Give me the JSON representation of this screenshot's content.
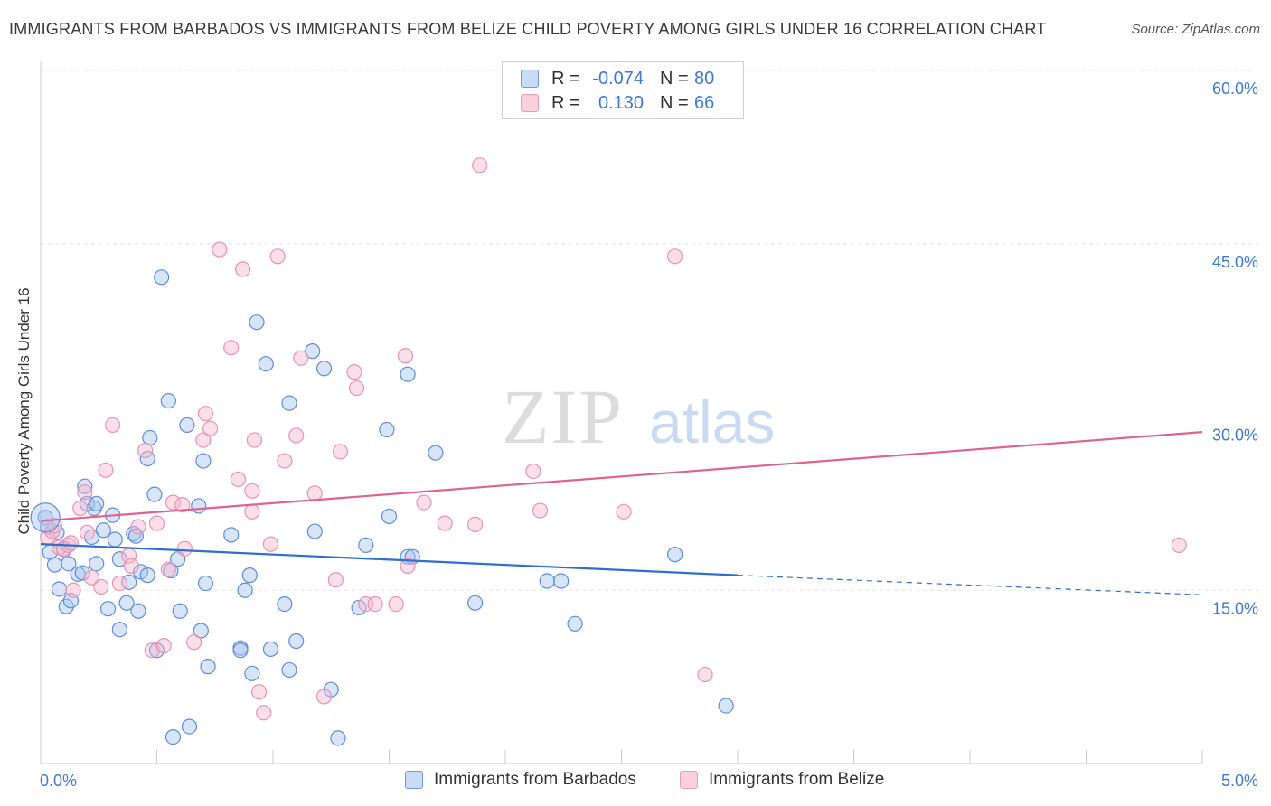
{
  "title": "IMMIGRANTS FROM BARBADOS VS IMMIGRANTS FROM BELIZE CHILD POVERTY AMONG GIRLS UNDER 16 CORRELATION CHART",
  "source": "Source: ZipAtlas.com",
  "watermark": {
    "zip": "ZIP",
    "atlas": "atlas"
  },
  "legend": {
    "rows": [
      {
        "r_label": "R =",
        "r_value": "-0.074",
        "n_label": "N =",
        "n_value": "80",
        "color": "#a9c4ef"
      },
      {
        "r_label": "R =",
        "r_value": "0.130",
        "n_label": "N =",
        "n_value": "66",
        "color": "#f6b9cc"
      }
    ]
  },
  "bottom_legend": [
    {
      "label": "Immigrants from Barbados",
      "color": "#a9c4ef"
    },
    {
      "label": "Immigrants from Belize",
      "color": "#f6b9cc"
    }
  ],
  "chart_data": {
    "type": "scatter",
    "xlabel": "",
    "ylabel": "Child Poverty Among Girls Under 16",
    "xlim": [
      0,
      5
    ],
    "ylim": [
      0,
      60
    ],
    "x_tick_labels": [
      {
        "x": 0,
        "label": "0.0%"
      },
      {
        "x": 5,
        "label": "5.0%"
      }
    ],
    "y_tick_labels": [
      {
        "y": 15,
        "label": "15.0%"
      },
      {
        "y": 30,
        "label": "30.0%"
      },
      {
        "y": 45,
        "label": "45.0%"
      },
      {
        "y": 60,
        "label": "60.0%"
      }
    ],
    "grid": "dashed horizontal",
    "series": [
      {
        "name": "Immigrants from Barbados",
        "color": "#5b8fdc",
        "fill": "#a9c4ef",
        "trend": {
          "x": [
            0,
            3.0
          ],
          "y": [
            19.0,
            16.3
          ],
          "dashed_to": [
            5.0,
            14.6
          ],
          "color": "#2e6fd0"
        },
        "points": [
          [
            0.02,
            21.3
          ],
          [
            0.03,
            20.5
          ],
          [
            0.04,
            18.3
          ],
          [
            0.06,
            17.2
          ],
          [
            0.07,
            20.0
          ],
          [
            0.08,
            15.1
          ],
          [
            0.1,
            18.6
          ],
          [
            0.11,
            13.6
          ],
          [
            0.12,
            17.3
          ],
          [
            0.13,
            14.1
          ],
          [
            0.16,
            16.4
          ],
          [
            0.18,
            16.5
          ],
          [
            0.19,
            24.0
          ],
          [
            0.2,
            22.5
          ],
          [
            0.22,
            19.6
          ],
          [
            0.23,
            22.1
          ],
          [
            0.24,
            22.5
          ],
          [
            0.24,
            17.3
          ],
          [
            0.27,
            20.2
          ],
          [
            0.29,
            13.4
          ],
          [
            0.31,
            21.5
          ],
          [
            0.32,
            19.4
          ],
          [
            0.34,
            11.6
          ],
          [
            0.34,
            17.7
          ],
          [
            0.37,
            13.9
          ],
          [
            0.38,
            15.7
          ],
          [
            0.4,
            19.9
          ],
          [
            0.41,
            19.7
          ],
          [
            0.42,
            13.2
          ],
          [
            0.43,
            16.6
          ],
          [
            0.46,
            16.3
          ],
          [
            0.46,
            26.4
          ],
          [
            0.47,
            28.2
          ],
          [
            0.49,
            23.3
          ],
          [
            0.5,
            9.8
          ],
          [
            0.52,
            42.1
          ],
          [
            0.55,
            31.4
          ],
          [
            0.56,
            16.7
          ],
          [
            0.57,
            2.3
          ],
          [
            0.59,
            17.7
          ],
          [
            0.6,
            13.2
          ],
          [
            0.63,
            29.3
          ],
          [
            0.64,
            3.2
          ],
          [
            0.68,
            22.3
          ],
          [
            0.69,
            11.5
          ],
          [
            0.7,
            26.2
          ],
          [
            0.71,
            15.6
          ],
          [
            0.72,
            8.4
          ],
          [
            0.82,
            19.8
          ],
          [
            0.86,
            10.0
          ],
          [
            0.86,
            9.8
          ],
          [
            0.88,
            15.0
          ],
          [
            0.9,
            16.3
          ],
          [
            0.91,
            7.8
          ],
          [
            0.93,
            38.2
          ],
          [
            0.97,
            34.6
          ],
          [
            0.99,
            9.9
          ],
          [
            1.05,
            13.8
          ],
          [
            1.07,
            8.1
          ],
          [
            1.07,
            31.2
          ],
          [
            1.1,
            10.6
          ],
          [
            1.17,
            35.7
          ],
          [
            1.18,
            20.1
          ],
          [
            1.22,
            34.2
          ],
          [
            1.25,
            6.4
          ],
          [
            1.28,
            2.2
          ],
          [
            1.37,
            13.5
          ],
          [
            1.4,
            18.9
          ],
          [
            1.49,
            28.9
          ],
          [
            1.5,
            21.4
          ],
          [
            1.58,
            17.9
          ],
          [
            1.58,
            33.7
          ],
          [
            1.6,
            17.9
          ],
          [
            1.7,
            26.9
          ],
          [
            1.87,
            13.9
          ],
          [
            2.18,
            15.8
          ],
          [
            2.24,
            15.8
          ],
          [
            2.3,
            12.1
          ],
          [
            2.73,
            18.1
          ],
          [
            2.95,
            5.0
          ]
        ]
      },
      {
        "name": "Immigrants from Belize",
        "color": "#e993b0",
        "fill": "#f6b9cc",
        "trend": {
          "x": [
            0,
            5.0
          ],
          "y": [
            21.0,
            28.7
          ],
          "color": "#e0638f"
        },
        "points": [
          [
            0.03,
            19.6
          ],
          [
            0.05,
            20.1
          ],
          [
            0.06,
            20.6
          ],
          [
            0.08,
            18.7
          ],
          [
            0.1,
            18.5
          ],
          [
            0.12,
            18.9
          ],
          [
            0.14,
            15.0
          ],
          [
            0.17,
            22.1
          ],
          [
            0.19,
            23.5
          ],
          [
            0.2,
            20.0
          ],
          [
            0.22,
            16.1
          ],
          [
            0.26,
            15.3
          ],
          [
            0.28,
            25.4
          ],
          [
            0.31,
            29.3
          ],
          [
            0.34,
            15.6
          ],
          [
            0.38,
            18.0
          ],
          [
            0.39,
            17.1
          ],
          [
            0.45,
            27.1
          ],
          [
            0.48,
            9.8
          ],
          [
            0.5,
            20.8
          ],
          [
            0.53,
            10.2
          ],
          [
            0.55,
            16.8
          ],
          [
            0.57,
            22.6
          ],
          [
            0.61,
            22.4
          ],
          [
            0.62,
            18.6
          ],
          [
            0.66,
            10.5
          ],
          [
            0.7,
            28.0
          ],
          [
            0.71,
            30.3
          ],
          [
            0.73,
            29.0
          ],
          [
            0.77,
            44.5
          ],
          [
            0.82,
            36.0
          ],
          [
            0.85,
            24.6
          ],
          [
            0.87,
            42.8
          ],
          [
            0.91,
            23.6
          ],
          [
            0.91,
            21.8
          ],
          [
            0.92,
            28.0
          ],
          [
            0.94,
            6.2
          ],
          [
            0.96,
            4.4
          ],
          [
            0.99,
            19.0
          ],
          [
            1.02,
            43.9
          ],
          [
            1.05,
            26.2
          ],
          [
            1.1,
            28.4
          ],
          [
            1.12,
            35.1
          ],
          [
            1.18,
            23.4
          ],
          [
            1.22,
            5.8
          ],
          [
            1.27,
            15.9
          ],
          [
            1.29,
            27.0
          ],
          [
            1.35,
            33.9
          ],
          [
            1.36,
            32.5
          ],
          [
            1.4,
            13.8
          ],
          [
            1.44,
            13.8
          ],
          [
            1.53,
            13.8
          ],
          [
            1.57,
            35.3
          ],
          [
            1.58,
            17.1
          ],
          [
            1.65,
            22.6
          ],
          [
            1.74,
            20.8
          ],
          [
            1.87,
            20.7
          ],
          [
            1.89,
            51.8
          ],
          [
            2.12,
            25.3
          ],
          [
            2.15,
            21.9
          ],
          [
            2.51,
            21.8
          ],
          [
            2.73,
            43.9
          ],
          [
            2.86,
            7.7
          ],
          [
            4.9,
            18.9
          ],
          [
            0.13,
            19.1
          ],
          [
            0.42,
            20.5
          ]
        ]
      }
    ]
  }
}
